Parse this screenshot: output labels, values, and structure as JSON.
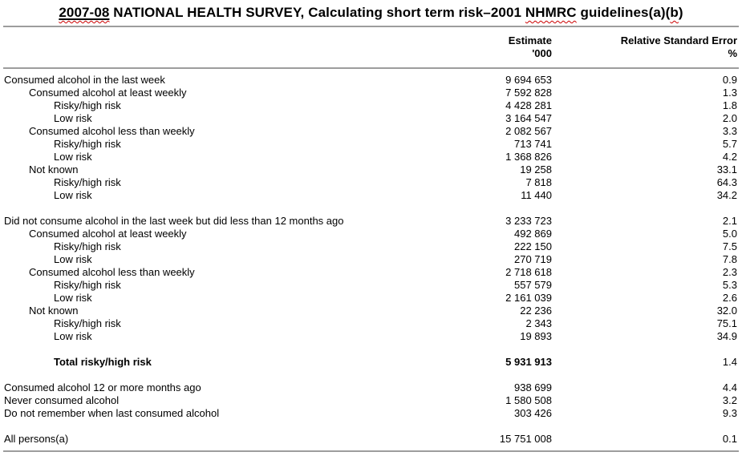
{
  "title": {
    "part_year": "2007-08",
    "part_main": " NATIONAL HEALTH SURVEY, Calculating short term risk–2001 ",
    "part_nhmrc": "NHMRC",
    "part_guidelines": " guidelines(a)(",
    "part_b": "b",
    "part_close": ")"
  },
  "columns": {
    "estimate": {
      "line1": "Estimate",
      "line2": "'000"
    },
    "rse": {
      "line1": "Relative Standard Error",
      "line2": "%"
    }
  },
  "table": {
    "rows": [
      {
        "type": "row",
        "label": "Consumed alcohol in the last week",
        "indent": 0,
        "est": "9 694 653",
        "rse": "0.9",
        "bold": false
      },
      {
        "type": "row",
        "label": "Consumed alcohol at least weekly",
        "indent": 1,
        "est": "7 592 828",
        "rse": "1.3",
        "bold": false
      },
      {
        "type": "row",
        "label": "Risky/high risk",
        "indent": 2,
        "est": "4 428 281",
        "rse": "1.8",
        "bold": false
      },
      {
        "type": "row",
        "label": "Low risk",
        "indent": 2,
        "est": "3 164 547",
        "rse": "2.0",
        "bold": false
      },
      {
        "type": "row",
        "label": "Consumed alcohol less than weekly",
        "indent": 1,
        "est": "2 082 567",
        "rse": "3.3",
        "bold": false
      },
      {
        "type": "row",
        "label": "Risky/high risk",
        "indent": 2,
        "est": "713 741",
        "rse": "5.7",
        "bold": false
      },
      {
        "type": "row",
        "label": "Low risk",
        "indent": 2,
        "est": "1 368 826",
        "rse": "4.2",
        "bold": false
      },
      {
        "type": "row",
        "label": "Not known",
        "indent": 1,
        "est": "19 258",
        "rse": "33.1",
        "bold": false
      },
      {
        "type": "row",
        "label": "Risky/high risk",
        "indent": 2,
        "est": "7 818",
        "rse": "64.3",
        "bold": false
      },
      {
        "type": "row",
        "label": "Low risk",
        "indent": 2,
        "est": "11 440",
        "rse": "34.2",
        "bold": false
      },
      {
        "type": "spacer"
      },
      {
        "type": "row",
        "label": "Did not consume alcohol in the last week but did less than 12 months ago",
        "indent": 0,
        "est": "3 233 723",
        "rse": "2.1",
        "bold": false
      },
      {
        "type": "row",
        "label": "Consumed alcohol at least weekly",
        "indent": 1,
        "est": "492 869",
        "rse": "5.0",
        "bold": false
      },
      {
        "type": "row",
        "label": "Risky/high risk",
        "indent": 2,
        "est": "222 150",
        "rse": "7.5",
        "bold": false
      },
      {
        "type": "row",
        "label": "Low risk",
        "indent": 2,
        "est": "270 719",
        "rse": "7.8",
        "bold": false
      },
      {
        "type": "row",
        "label": "Consumed alcohol less than weekly",
        "indent": 1,
        "est": "2 718 618",
        "rse": "2.3",
        "bold": false
      },
      {
        "type": "row",
        "label": "Risky/high risk",
        "indent": 2,
        "est": "557 579",
        "rse": "5.3",
        "bold": false
      },
      {
        "type": "row",
        "label": "Low risk",
        "indent": 2,
        "est": "2 161 039",
        "rse": "2.6",
        "bold": false
      },
      {
        "type": "row",
        "label": "Not known",
        "indent": 1,
        "est": "22 236",
        "rse": "32.0",
        "bold": false
      },
      {
        "type": "row",
        "label": "Risky/high risk",
        "indent": 2,
        "est": "2 343",
        "rse": "75.1",
        "bold": false
      },
      {
        "type": "row",
        "label": "Low risk",
        "indent": 2,
        "est": "19 893",
        "rse": "34.9",
        "bold": false
      },
      {
        "type": "spacer"
      },
      {
        "type": "row",
        "label": "Total risky/high risk",
        "indent": 2,
        "est": "5 931 913",
        "rse": "1.4",
        "bold": true
      },
      {
        "type": "spacer"
      },
      {
        "type": "row",
        "label": "Consumed alcohol 12 or more months ago",
        "indent": 0,
        "est": "938 699",
        "rse": "4.4",
        "bold": false
      },
      {
        "type": "row",
        "label": "Never consumed alcohol",
        "indent": 0,
        "est": "1 580 508",
        "rse": "3.2",
        "bold": false
      },
      {
        "type": "row",
        "label": "Do not remember when last consumed alcohol",
        "indent": 0,
        "est": "303 426",
        "rse": "9.3",
        "bold": false
      },
      {
        "type": "spacer"
      },
      {
        "type": "row",
        "label": "All persons(a)",
        "indent": 0,
        "est": "15 751 008",
        "rse": "0.1",
        "bold": false
      }
    ]
  }
}
